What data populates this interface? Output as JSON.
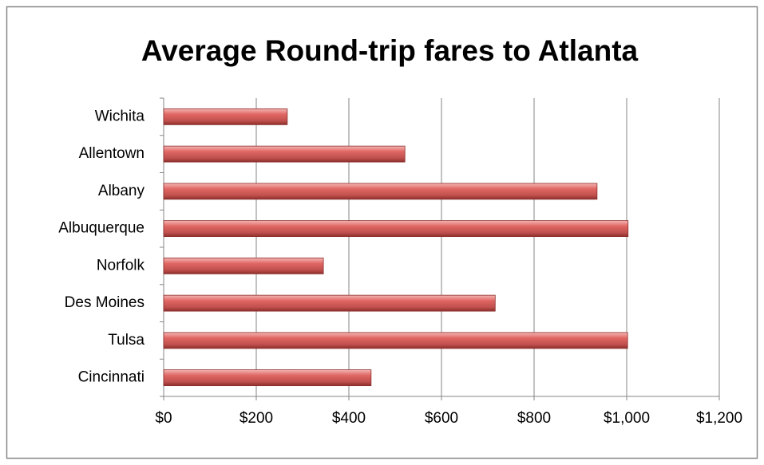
{
  "chart_data": {
    "type": "bar",
    "orientation": "horizontal",
    "title": "Average Round-trip fares to Atlanta",
    "categories": [
      "Wichita",
      "Allentown",
      "Albany",
      "Albuquerque",
      "Norfolk",
      "Des Moines",
      "Tulsa",
      "Cincinnati"
    ],
    "values": [
      267,
      521,
      936,
      1003,
      345,
      716,
      1002,
      448
    ],
    "color": "#c0504d",
    "xlim": [
      0,
      1200
    ],
    "xticks": [
      {
        "value": 0,
        "label": "$0"
      },
      {
        "value": 200,
        "label": "$200"
      },
      {
        "value": 400,
        "label": "$400"
      },
      {
        "value": 600,
        "label": "$600"
      },
      {
        "value": 800,
        "label": "$800"
      },
      {
        "value": 1000,
        "label": "$1,000"
      },
      {
        "value": 1200,
        "label": "$1,200"
      }
    ],
    "grid": true
  }
}
